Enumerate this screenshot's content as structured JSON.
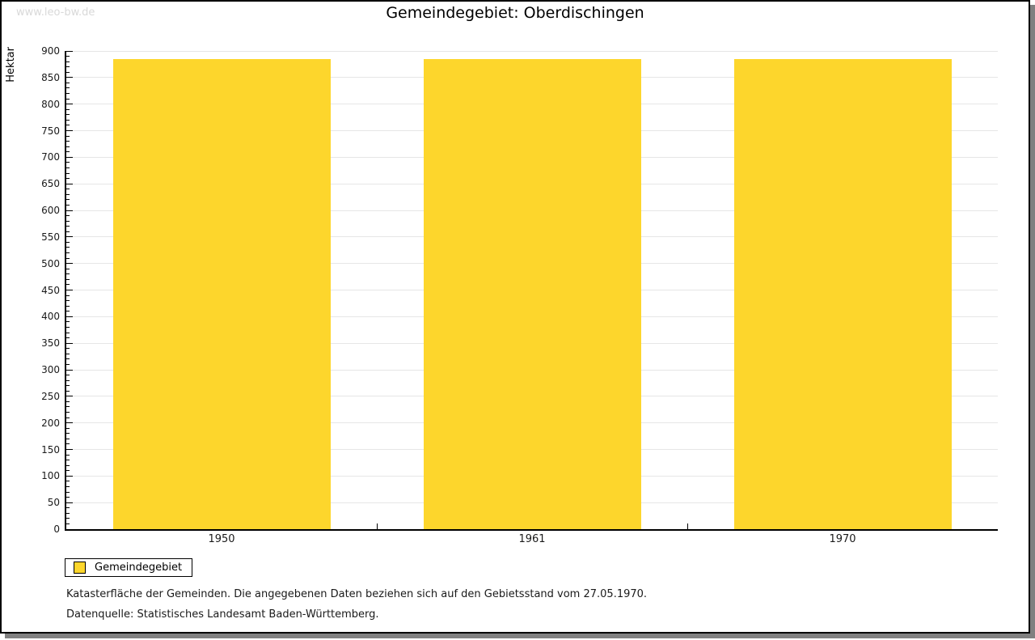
{
  "watermark": "www.leo-bw.de",
  "title": "Gemeindegebiet: Oberdischingen",
  "chart_data": {
    "type": "bar",
    "title": "Gemeindegebiet: Oberdischingen",
    "categories": [
      "1950",
      "1961",
      "1970"
    ],
    "series": [
      {
        "name": "Gemeindegebiet",
        "values": [
          885,
          885,
          885
        ]
      }
    ],
    "xlabel": "",
    "ylabel": "Hektar",
    "ylim": [
      0,
      900
    ],
    "ytick_major": 50,
    "ytick_minor": 10,
    "grid": true,
    "legend_position": "bottom-left",
    "bar_color": "#FDD62C"
  },
  "legend": {
    "items": [
      {
        "label": "Gemeindegebiet",
        "color": "#FDD62C"
      }
    ]
  },
  "footnotes": {
    "line1": "Katasterfläche der Gemeinden. Die angegebenen Daten beziehen sich auf den Gebietsstand vom 27.05.1970.",
    "line2": "Datenquelle: Statistisches Landesamt Baden-Württemberg."
  },
  "colors": {
    "bar": "#FDD62C",
    "grid": "#e6e6e6",
    "axis": "#000000",
    "shadow": "#808080",
    "watermark": "#d9d9d9"
  }
}
